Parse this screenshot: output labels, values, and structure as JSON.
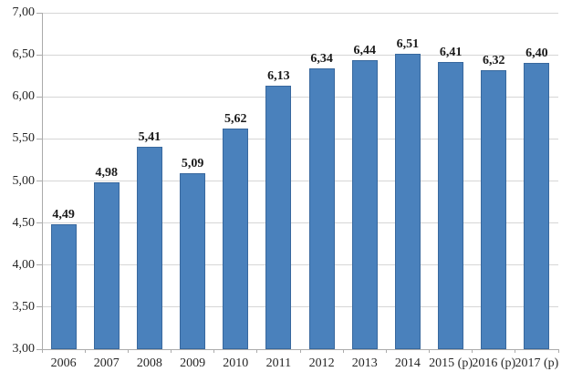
{
  "chart_data": {
    "type": "bar",
    "title": "",
    "xlabel": "",
    "ylabel": "",
    "categories": [
      "2006",
      "2007",
      "2008",
      "2009",
      "2010",
      "2011",
      "2012",
      "2013",
      "2014",
      "2015 (p)",
      "2016 (p)",
      "2017 (p)"
    ],
    "values": [
      4.49,
      4.98,
      5.41,
      5.09,
      5.62,
      6.13,
      6.34,
      6.44,
      6.51,
      6.41,
      6.32,
      6.4
    ],
    "value_labels": [
      "4,49",
      "4,98",
      "5,41",
      "5,09",
      "5,62",
      "6,13",
      "6,34",
      "6,44",
      "6,51",
      "6,41",
      "6,32",
      "6,40"
    ],
    "ylim": [
      3.0,
      7.0
    ],
    "y_tick_step": 0.5,
    "y_tick_labels": [
      "3,00",
      "3,50",
      "4,00",
      "4,50",
      "5,00",
      "5,50",
      "6,00",
      "6,50",
      "7,00"
    ],
    "grid": true,
    "legend": "none",
    "colors": {
      "bar_fill": "#4A81BC",
      "bar_border": "#38689E",
      "gridline": "#D6D6D6",
      "axis_line": "#ABABAB",
      "text": "#262626",
      "value_label_text": "#1A1A1A"
    }
  }
}
